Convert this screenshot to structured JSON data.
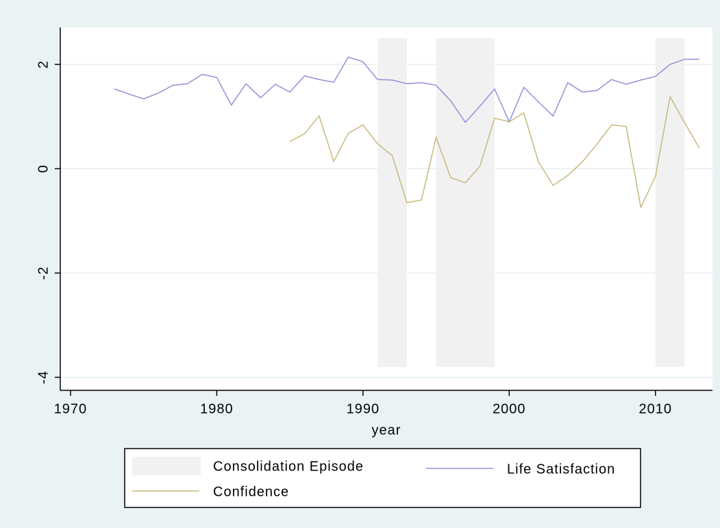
{
  "chart_data": {
    "type": "line",
    "x_label": "year",
    "xlim": [
      1969.3,
      2013.9
    ],
    "ylim": [
      -4.25,
      2.71
    ],
    "xticks": [
      1970,
      1980,
      1990,
      2000,
      2010
    ],
    "yticks": [
      -4,
      -2,
      0,
      2
    ],
    "grid": true,
    "series": [
      {
        "name": "Consolidation Episode",
        "type": "band",
        "color": "#f1f1f1",
        "ranges": [
          [
            1991,
            1993
          ],
          [
            1995,
            1999
          ],
          [
            2010,
            2012
          ]
        ],
        "lower": -3.8,
        "upper": 2.5
      },
      {
        "name": "Life Satisfaction",
        "color": "#9090dc",
        "x": [
          1973,
          1974,
          1975,
          1976,
          1977,
          1978,
          1979,
          1980,
          1981,
          1982,
          1983,
          1984,
          1985,
          1986,
          1987,
          1988,
          1989,
          1990,
          1991,
          1992,
          1993,
          1994,
          1995,
          1996,
          1997,
          1998,
          1999,
          2000,
          2001,
          2002,
          2003,
          2004,
          2005,
          2006,
          2007,
          2008,
          2009,
          2010,
          2011,
          2012,
          2013
        ],
        "values": [
          1.53,
          1.43,
          1.34,
          1.45,
          1.6,
          1.63,
          1.81,
          1.75,
          1.22,
          1.63,
          1.36,
          1.62,
          1.47,
          1.78,
          1.71,
          1.66,
          2.14,
          2.05,
          1.71,
          1.7,
          1.63,
          1.65,
          1.6,
          1.3,
          0.89,
          1.2,
          1.53,
          0.9,
          1.56,
          1.28,
          1.01,
          1.65,
          1.47,
          1.5,
          1.71,
          1.62,
          1.7,
          1.77,
          2.0,
          2.1,
          2.1
        ]
      },
      {
        "name": "Confidence",
        "color": "#c8b87a",
        "x": [
          1985,
          1986,
          1987,
          1988,
          1989,
          1990,
          1991,
          1992,
          1993,
          1994,
          1995,
          1996,
          1997,
          1998,
          1999,
          2000,
          2001,
          2002,
          2003,
          2004,
          2005,
          2006,
          2007,
          2008,
          2009,
          2010,
          2011,
          2012,
          2013
        ],
        "values": [
          0.52,
          0.67,
          1.01,
          0.14,
          0.68,
          0.84,
          0.48,
          0.25,
          -0.65,
          -0.6,
          0.6,
          -0.17,
          -0.27,
          0.05,
          0.97,
          0.9,
          1.07,
          0.13,
          -0.32,
          -0.13,
          0.13,
          0.47,
          0.84,
          0.81,
          -0.74,
          -0.15,
          1.38,
          0.88,
          0.4
        ]
      }
    ],
    "legend": "bottom"
  }
}
